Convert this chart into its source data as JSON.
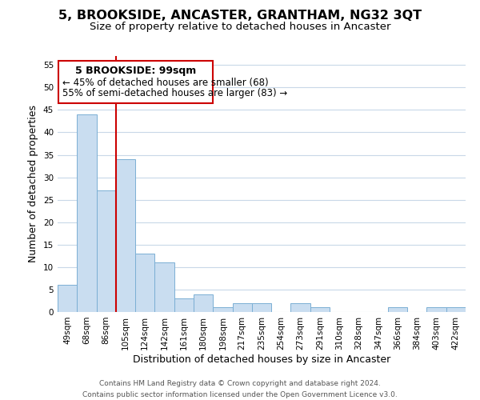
{
  "title": "5, BROOKSIDE, ANCASTER, GRANTHAM, NG32 3QT",
  "subtitle": "Size of property relative to detached houses in Ancaster",
  "xlabel": "Distribution of detached houses by size in Ancaster",
  "ylabel": "Number of detached properties",
  "bar_labels": [
    "49sqm",
    "68sqm",
    "86sqm",
    "105sqm",
    "124sqm",
    "142sqm",
    "161sqm",
    "180sqm",
    "198sqm",
    "217sqm",
    "235sqm",
    "254sqm",
    "273sqm",
    "291sqm",
    "310sqm",
    "328sqm",
    "347sqm",
    "366sqm",
    "384sqm",
    "403sqm",
    "422sqm"
  ],
  "bar_values": [
    6,
    44,
    27,
    34,
    13,
    11,
    3,
    4,
    1,
    2,
    2,
    0,
    2,
    1,
    0,
    0,
    0,
    1,
    0,
    1,
    1
  ],
  "bar_color": "#c9ddf0",
  "bar_edge_color": "#7bafd4",
  "property_line_x": 3,
  "property_line_color": "#cc0000",
  "ylim_min": 0,
  "ylim_max": 57,
  "yticks": [
    0,
    5,
    10,
    15,
    20,
    25,
    30,
    35,
    40,
    45,
    50,
    55
  ],
  "annotation_title": "5 BROOKSIDE: 99sqm",
  "annotation_line1": "← 45% of detached houses are smaller (68)",
  "annotation_line2": "55% of semi-detached houses are larger (83) →",
  "annotation_box_color": "#ffffff",
  "annotation_box_edge": "#cc0000",
  "footer_line1": "Contains HM Land Registry data © Crown copyright and database right 2024.",
  "footer_line2": "Contains public sector information licensed under the Open Government Licence v3.0.",
  "bg_color": "#ffffff",
  "grid_color": "#c8d8e8",
  "title_fontsize": 11.5,
  "subtitle_fontsize": 9.5,
  "axis_label_fontsize": 9,
  "tick_fontsize": 7.5,
  "annotation_title_fontsize": 9,
  "annotation_body_fontsize": 8.5,
  "footer_fontsize": 6.5
}
